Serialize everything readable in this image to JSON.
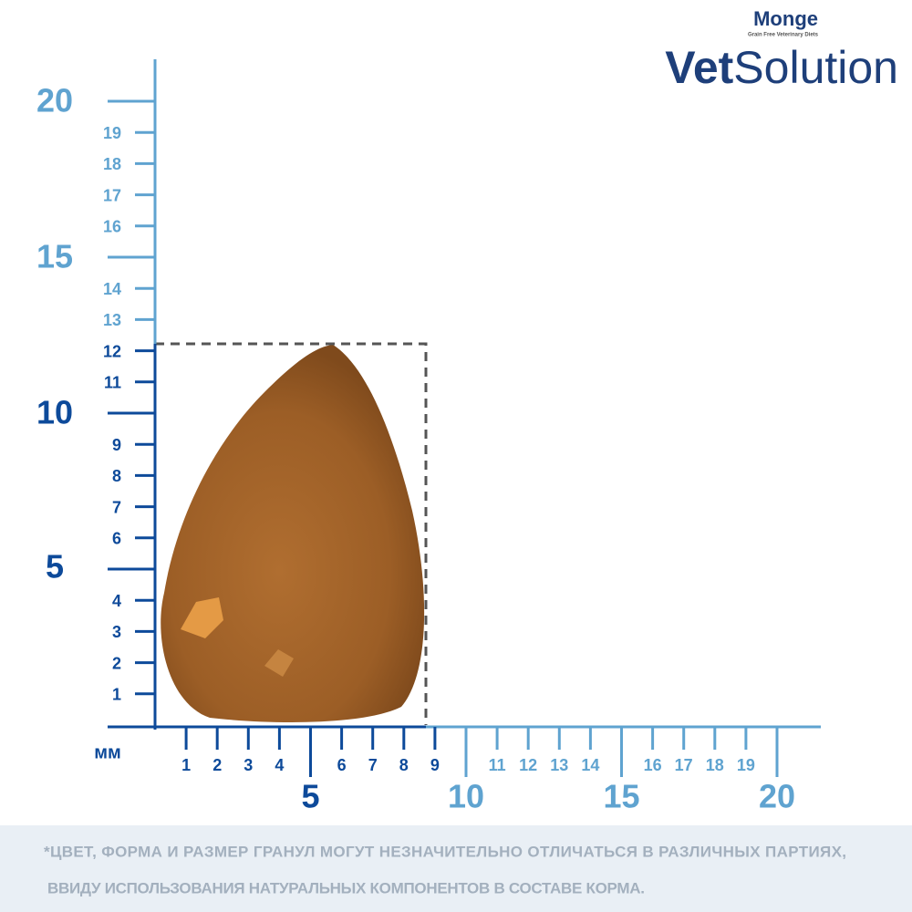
{
  "brand": {
    "name": "Monge",
    "tagline": "Grain Free Veterinary Diets",
    "product_bold": "Vet",
    "product_light": "Solution"
  },
  "ruler": {
    "unit": "мм",
    "vertical_labels": [
      "1",
      "2",
      "3",
      "4",
      "5",
      "6",
      "7",
      "8",
      "9",
      "10",
      "11",
      "12",
      "13",
      "14",
      "15",
      "16",
      "17",
      "18",
      "19",
      "20"
    ],
    "horizontal_labels": [
      "1",
      "2",
      "3",
      "4",
      "5",
      "6",
      "7",
      "8",
      "9",
      "10",
      "11",
      "12",
      "13",
      "14",
      "15",
      "16",
      "17",
      "18",
      "19",
      "20"
    ]
  },
  "footnote": [
    "*ЦВЕТ, ФОРМА И РАЗМЕР ГРАНУЛ МОГУТ НЕЗНАЧИТЕЛЬНО ОТЛИЧАТЬСЯ В РАЗЛИЧНЫХ ПАРТИЯХ,",
    "ВВИДУ ИСПОЛЬЗОВАНИЯ НАТУРАЛЬНЫХ КОМПОНЕНТОВ В СОСТАВЕ КОРМА."
  ]
}
